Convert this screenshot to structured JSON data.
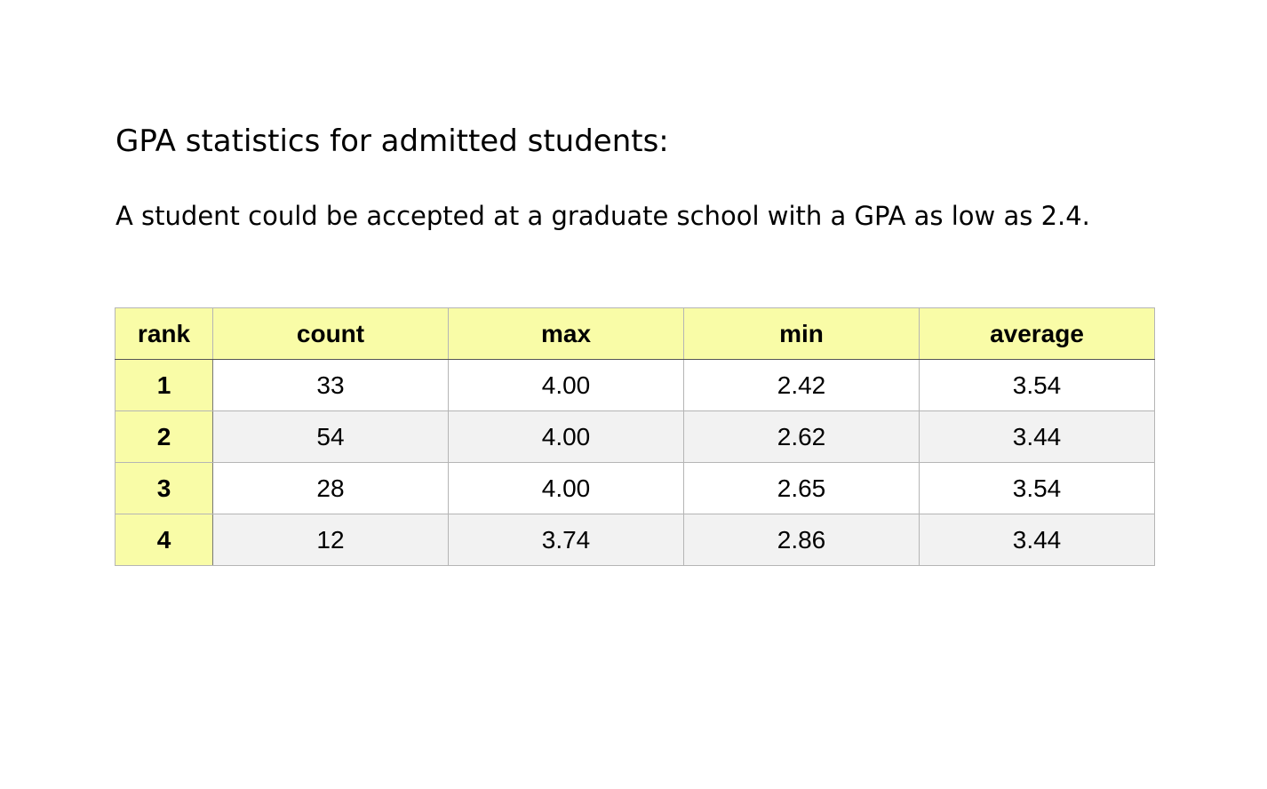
{
  "heading": "GPA statistics for admitted students:",
  "statement": "A student could be accepted at a graduate school with a GPA as low as 2.4.",
  "table": {
    "columns": [
      "rank",
      "count",
      "max",
      "min",
      "average"
    ],
    "rows": [
      {
        "rank": "1",
        "count": "33",
        "max": "4.00",
        "min": "2.42",
        "average": "3.54"
      },
      {
        "rank": "2",
        "count": "54",
        "max": "4.00",
        "min": "2.62",
        "average": "3.44"
      },
      {
        "rank": "3",
        "count": "28",
        "max": "4.00",
        "min": "2.65",
        "average": "3.54"
      },
      {
        "rank": "4",
        "count": "12",
        "max": "3.74",
        "min": "2.86",
        "average": "3.44"
      }
    ]
  },
  "colors": {
    "header_fill": "#f9fca7",
    "zebra_fill": "#f2f2f2",
    "grid_line": "#b5b5b5"
  }
}
